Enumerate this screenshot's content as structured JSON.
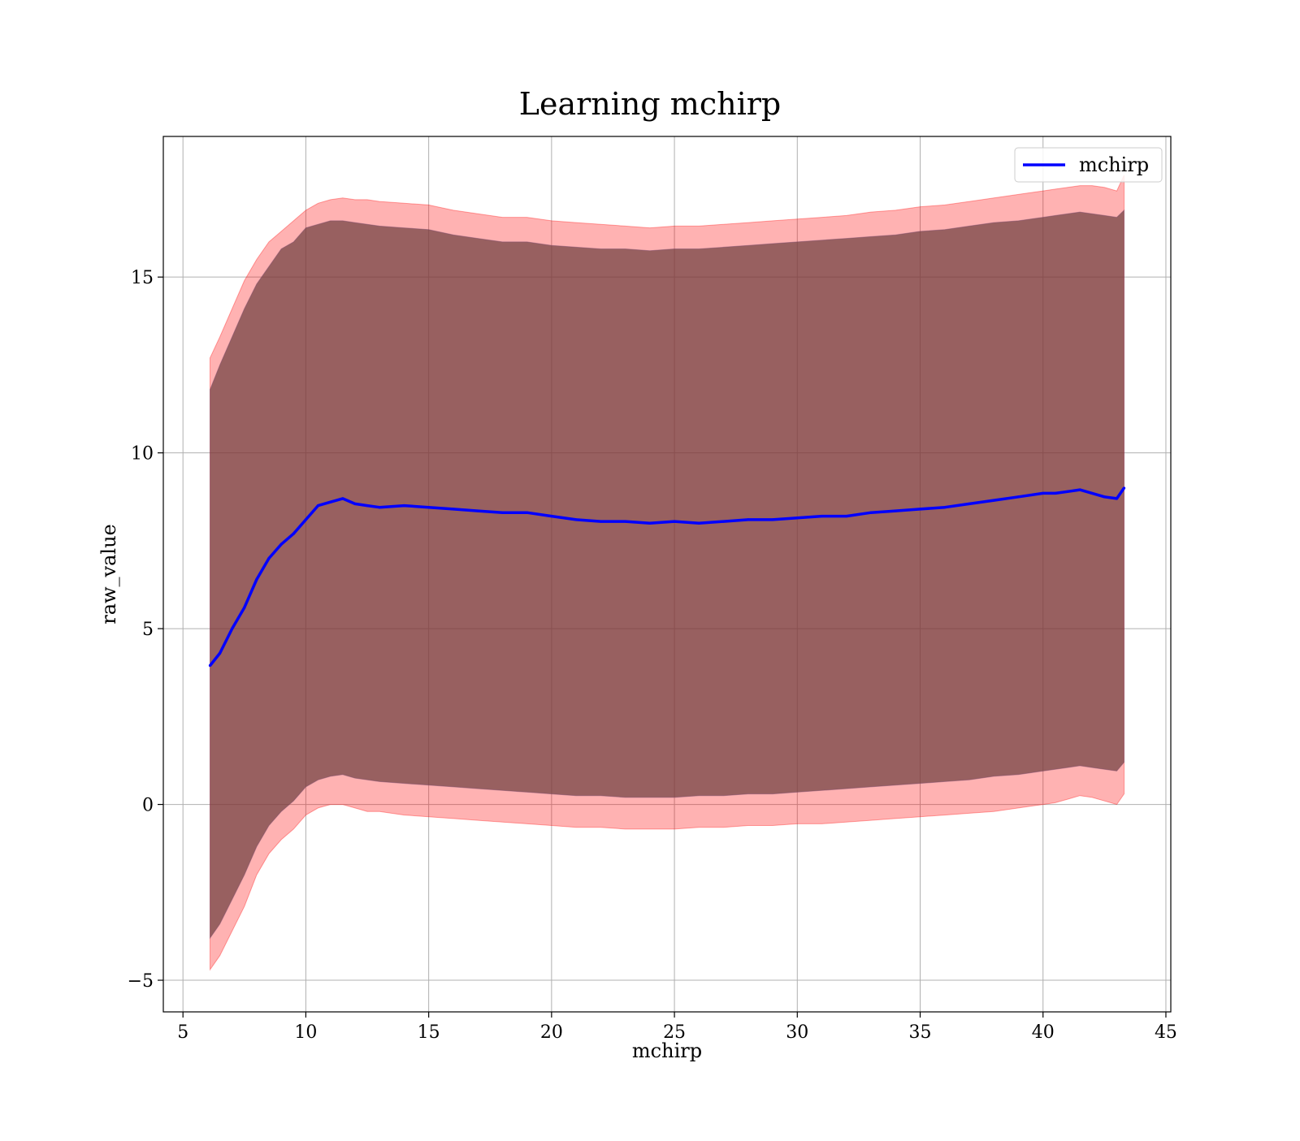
{
  "chart_data": {
    "type": "area",
    "title": "Learning mchirp",
    "xlabel": "mchirp",
    "ylabel": "raw_value",
    "xlim": [
      4.2,
      45.2
    ],
    "ylim": [
      -5.9,
      19.0
    ],
    "x_ticks": [
      5,
      10,
      15,
      20,
      25,
      30,
      35,
      40,
      45
    ],
    "y_ticks": [
      -5,
      0,
      5,
      10,
      15
    ],
    "x_tick_labels": [
      "5",
      "10",
      "15",
      "20",
      "25",
      "30",
      "35",
      "40",
      "45"
    ],
    "y_tick_labels": [
      "−5",
      "0",
      "5",
      "10",
      "15"
    ],
    "grid": true,
    "legend": {
      "placement": "top-right",
      "entries": [
        "mchirp"
      ]
    },
    "series": [
      {
        "name": "mchirp",
        "color": "#0000ff",
        "x": [
          6.1,
          6.5,
          7.0,
          7.5,
          8.0,
          8.5,
          9.0,
          9.5,
          10.0,
          10.5,
          11.0,
          11.5,
          12.0,
          12.5,
          13.0,
          14.0,
          15.0,
          16.0,
          17.0,
          18.0,
          19.0,
          20.0,
          21.0,
          22.0,
          23.0,
          24.0,
          25.0,
          26.0,
          27.0,
          28.0,
          29.0,
          30.0,
          31.0,
          32.0,
          33.0,
          34.0,
          35.0,
          36.0,
          37.0,
          38.0,
          39.0,
          40.0,
          40.5,
          41.0,
          41.5,
          42.0,
          42.5,
          43.0,
          43.3
        ],
        "y": [
          3.95,
          4.3,
          5.0,
          5.6,
          6.4,
          7.0,
          7.4,
          7.7,
          8.1,
          8.5,
          8.6,
          8.7,
          8.55,
          8.5,
          8.45,
          8.5,
          8.45,
          8.4,
          8.35,
          8.3,
          8.3,
          8.2,
          8.1,
          8.05,
          8.05,
          8.0,
          8.05,
          8.0,
          8.05,
          8.1,
          8.1,
          8.15,
          8.2,
          8.2,
          8.3,
          8.35,
          8.4,
          8.45,
          8.55,
          8.65,
          8.75,
          8.85,
          8.85,
          8.9,
          8.95,
          8.85,
          8.75,
          8.7,
          9.0
        ]
      },
      {
        "name": "outer band",
        "color": "#ff0000",
        "upper": [
          12.7,
          13.3,
          14.1,
          14.9,
          15.5,
          16.0,
          16.3,
          16.6,
          16.9,
          17.1,
          17.2,
          17.25,
          17.2,
          17.2,
          17.15,
          17.1,
          17.05,
          16.9,
          16.8,
          16.7,
          16.7,
          16.6,
          16.55,
          16.5,
          16.45,
          16.4,
          16.45,
          16.45,
          16.5,
          16.55,
          16.6,
          16.65,
          16.7,
          16.75,
          16.85,
          16.9,
          17.0,
          17.05,
          17.15,
          17.25,
          17.35,
          17.45,
          17.5,
          17.55,
          17.6,
          17.6,
          17.55,
          17.45,
          17.9
        ],
        "lower": [
          -4.7,
          -4.3,
          -3.6,
          -2.9,
          -2.0,
          -1.4,
          -1.0,
          -0.7,
          -0.3,
          -0.1,
          0.0,
          0.0,
          -0.1,
          -0.2,
          -0.2,
          -0.3,
          -0.35,
          -0.4,
          -0.45,
          -0.5,
          -0.55,
          -0.6,
          -0.65,
          -0.65,
          -0.7,
          -0.7,
          -0.7,
          -0.65,
          -0.65,
          -0.6,
          -0.6,
          -0.55,
          -0.55,
          -0.5,
          -0.45,
          -0.4,
          -0.35,
          -0.3,
          -0.25,
          -0.2,
          -0.1,
          0.0,
          0.05,
          0.15,
          0.25,
          0.2,
          0.1,
          0.0,
          0.3
        ]
      },
      {
        "name": "inner band",
        "color": "#704040",
        "upper": [
          11.8,
          12.5,
          13.3,
          14.1,
          14.8,
          15.3,
          15.8,
          16.0,
          16.4,
          16.5,
          16.6,
          16.6,
          16.55,
          16.5,
          16.45,
          16.4,
          16.35,
          16.2,
          16.1,
          16.0,
          16.0,
          15.9,
          15.85,
          15.8,
          15.8,
          15.75,
          15.8,
          15.8,
          15.85,
          15.9,
          15.95,
          16.0,
          16.05,
          16.1,
          16.15,
          16.2,
          16.3,
          16.35,
          16.45,
          16.55,
          16.6,
          16.7,
          16.75,
          16.8,
          16.85,
          16.8,
          16.75,
          16.7,
          16.9
        ],
        "lower": [
          -3.8,
          -3.4,
          -2.7,
          -2.0,
          -1.2,
          -0.6,
          -0.2,
          0.1,
          0.5,
          0.7,
          0.8,
          0.85,
          0.75,
          0.7,
          0.65,
          0.6,
          0.55,
          0.5,
          0.45,
          0.4,
          0.35,
          0.3,
          0.25,
          0.25,
          0.2,
          0.2,
          0.2,
          0.25,
          0.25,
          0.3,
          0.3,
          0.35,
          0.4,
          0.45,
          0.5,
          0.55,
          0.6,
          0.65,
          0.7,
          0.8,
          0.85,
          0.95,
          1.0,
          1.05,
          1.1,
          1.05,
          1.0,
          0.95,
          1.2
        ]
      }
    ]
  }
}
